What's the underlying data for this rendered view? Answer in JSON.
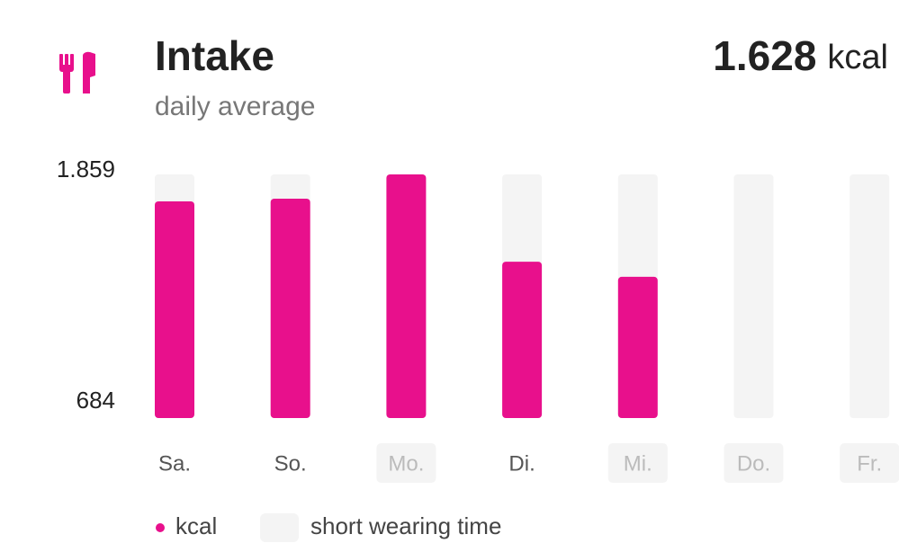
{
  "chart_data": {
    "type": "bar",
    "title": "Intake",
    "subtitle": "daily average",
    "summary_value": "1.628",
    "summary_unit": "kcal",
    "categories": [
      "Sa.",
      "So.",
      "Mo.",
      "Di.",
      "Mi.",
      "Do.",
      "Fr."
    ],
    "series": [
      {
        "name": "kcal",
        "color": "#e8108c",
        "values": [
          1729,
          1742,
          1859,
          1438,
          1365,
          null,
          null
        ]
      }
    ],
    "short_wearing_time": [
      false,
      false,
      true,
      false,
      true,
      true,
      true
    ],
    "short_wearing_time_label": "short wearing time",
    "ylim": [
      684,
      1859
    ],
    "yticks": [
      {
        "value": 1859,
        "label": "1.859"
      },
      684
    ]
  }
}
